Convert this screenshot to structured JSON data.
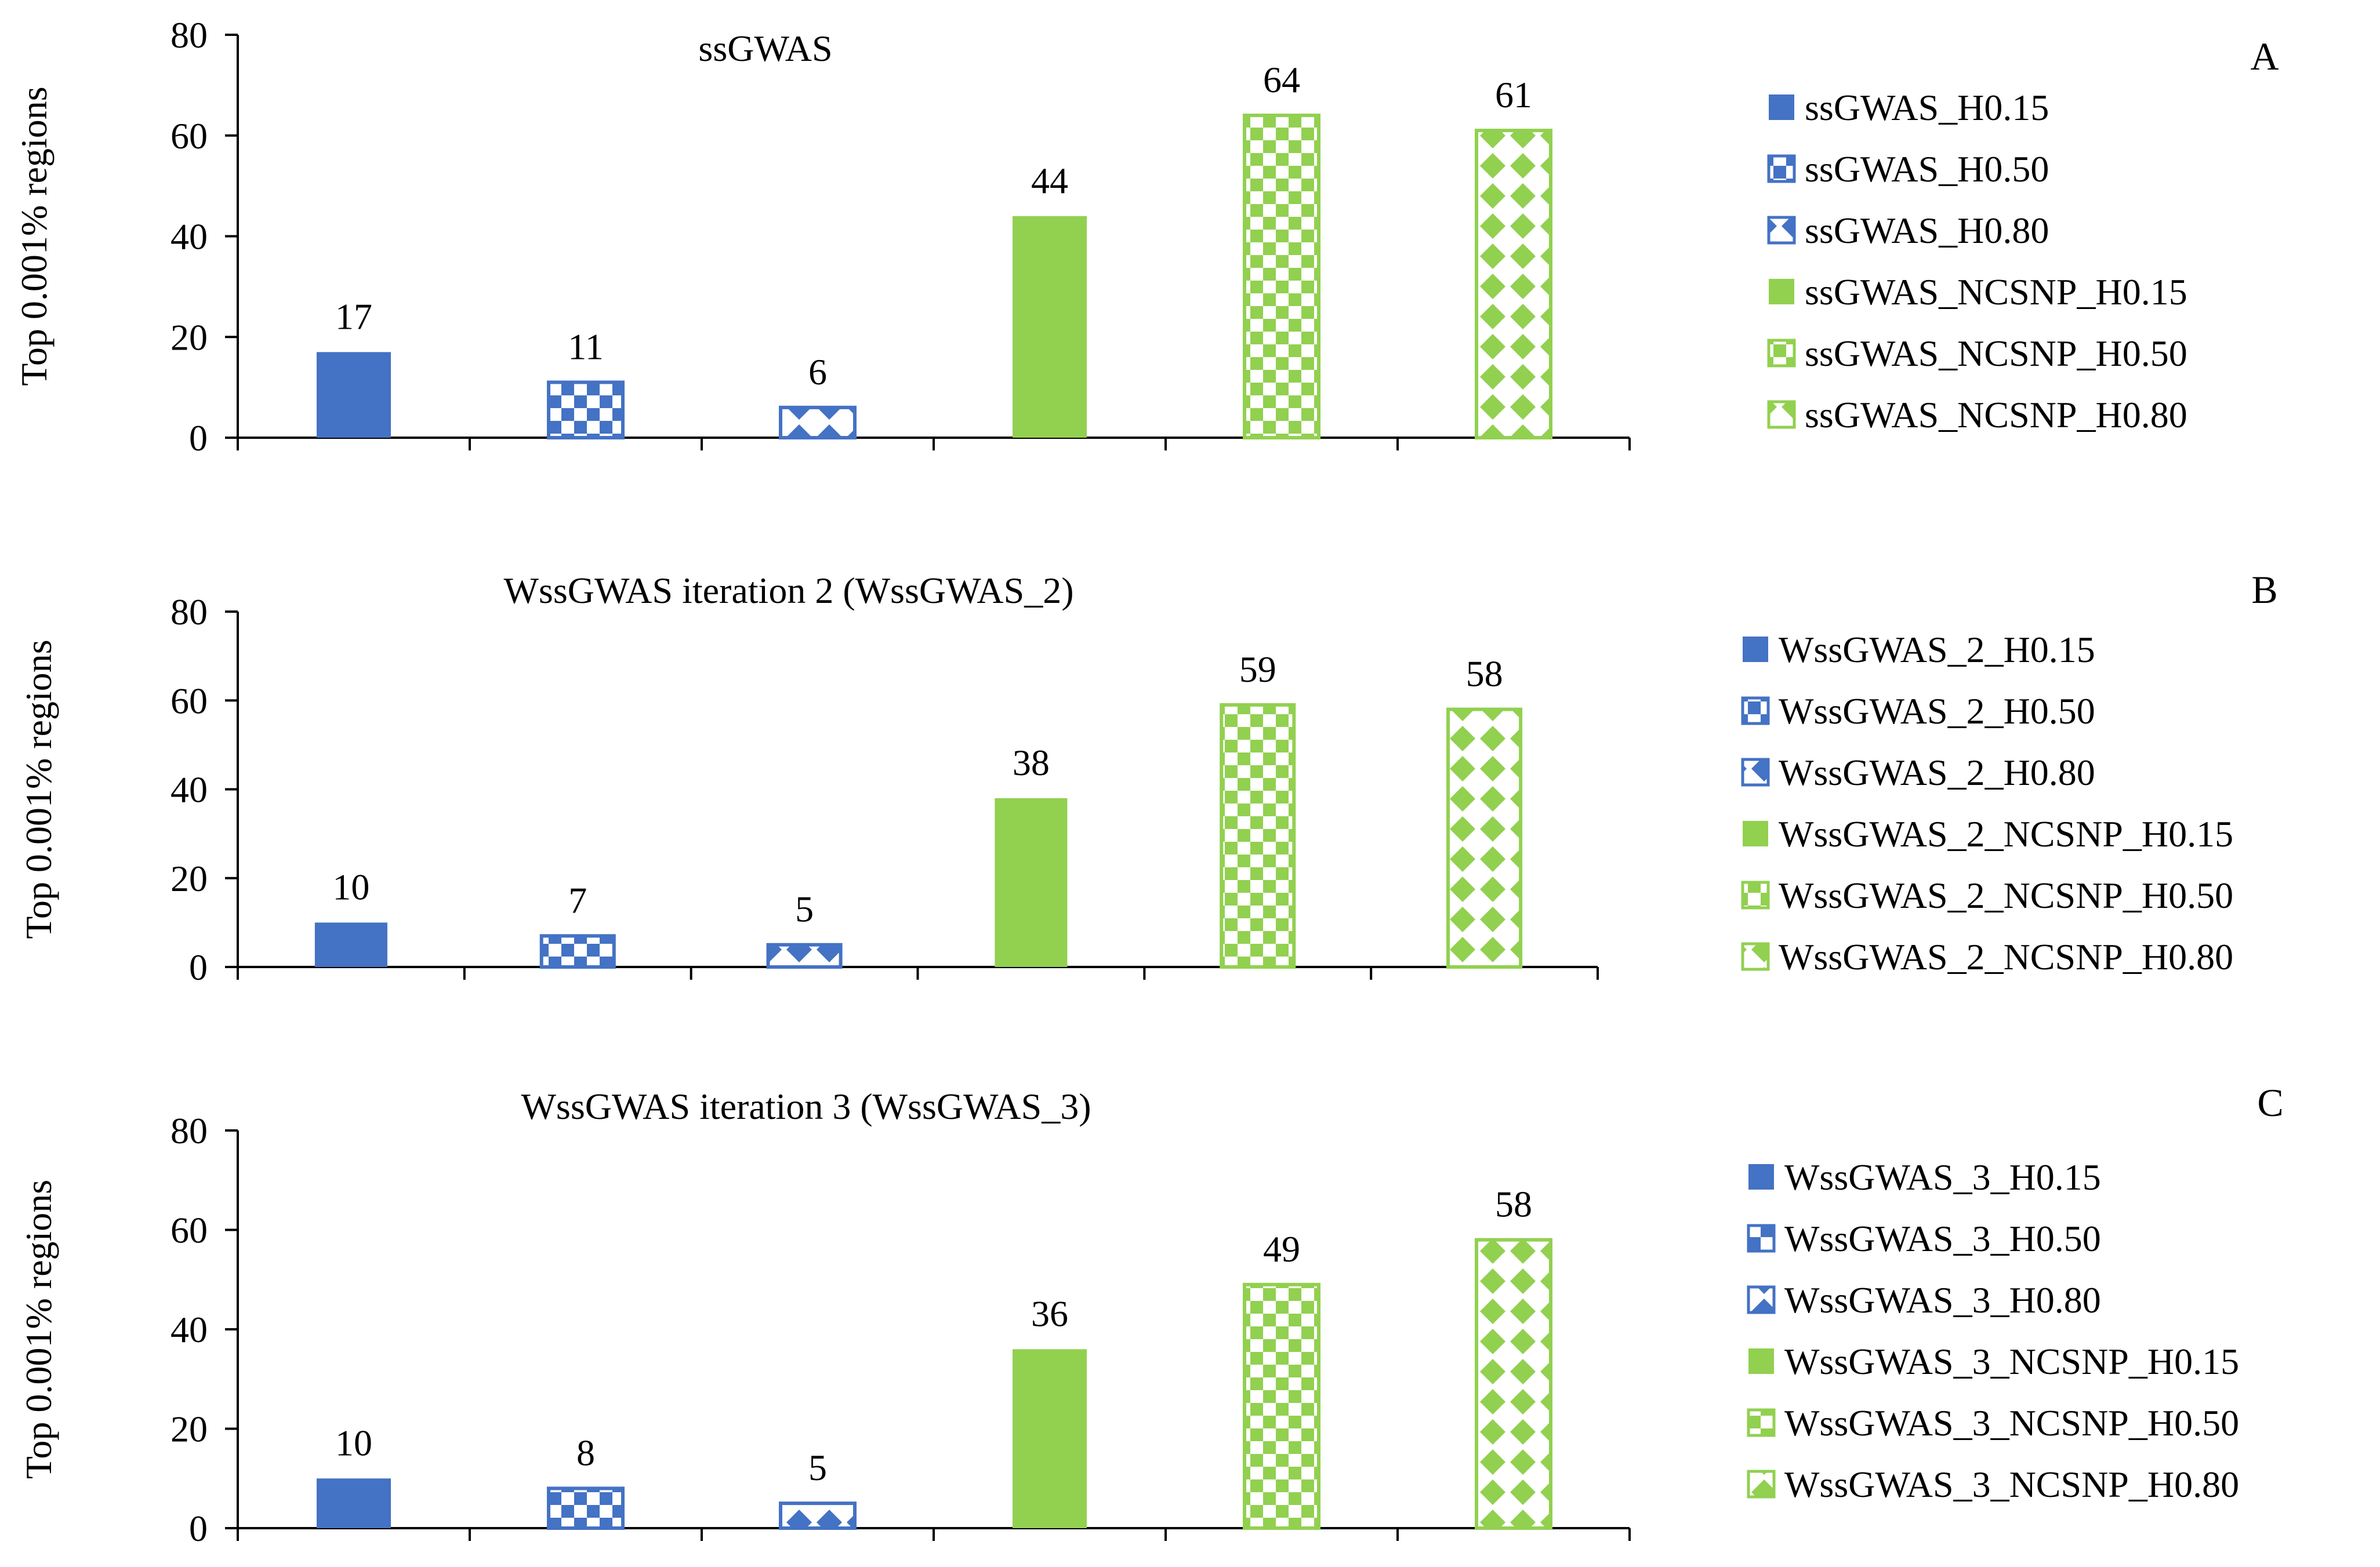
{
  "chart_data": [
    {
      "panel_letter": "A",
      "type": "bar",
      "title": "ssGWAS",
      "ylabel": "Top 0.001% regions",
      "xlabel": "",
      "ylim": [
        0,
        80
      ],
      "yticks": [
        0,
        20,
        40,
        60,
        80
      ],
      "legend_position": "right",
      "series": [
        {
          "name": "ssGWAS_H0.15",
          "value": 17,
          "color": "#4472C4",
          "pattern": "solid"
        },
        {
          "name": "ssGWAS_H0.50",
          "value": 11,
          "color": "#4472C4",
          "pattern": "checker"
        },
        {
          "name": "ssGWAS_H0.80",
          "value": 6,
          "color": "#4472C4",
          "pattern": "diamond"
        },
        {
          "name": "ssGWAS_NCSNP_H0.15",
          "value": 44,
          "color": "#92D050",
          "pattern": "solid"
        },
        {
          "name": "ssGWAS_NCSNP_H0.50",
          "value": 64,
          "color": "#92D050",
          "pattern": "checker"
        },
        {
          "name": "ssGWAS_NCSNP_H0.80",
          "value": 61,
          "color": "#92D050",
          "pattern": "diamond"
        }
      ]
    },
    {
      "panel_letter": "B",
      "type": "bar",
      "title": "WssGWAS iteration 2 (WssGWAS_2)",
      "ylabel": "Top 0.001% regions",
      "xlabel": "",
      "ylim": [
        0,
        80
      ],
      "yticks": [
        0,
        20,
        40,
        60,
        80
      ],
      "legend_position": "right",
      "series": [
        {
          "name": "WssGWAS_2_H0.15",
          "value": 10,
          "color": "#4472C4",
          "pattern": "solid"
        },
        {
          "name": "WssGWAS_2_H0.50",
          "value": 7,
          "color": "#4472C4",
          "pattern": "checker"
        },
        {
          "name": "WssGWAS_2_H0.80",
          "value": 5,
          "color": "#4472C4",
          "pattern": "diamond"
        },
        {
          "name": "WssGWAS_2_NCSNP_H0.15",
          "value": 38,
          "color": "#92D050",
          "pattern": "solid"
        },
        {
          "name": "WssGWAS_2_NCSNP_H0.50",
          "value": 59,
          "color": "#92D050",
          "pattern": "checker"
        },
        {
          "name": "WssGWAS_2_NCSNP_H0.80",
          "value": 58,
          "color": "#92D050",
          "pattern": "diamond"
        }
      ]
    },
    {
      "panel_letter": "C",
      "type": "bar",
      "title": "WssGWAS iteration 3 (WssGWAS_3)",
      "ylabel": "Top 0.001% regions",
      "xlabel": "",
      "ylim": [
        0,
        80
      ],
      "yticks": [
        0,
        20,
        40,
        60,
        80
      ],
      "legend_position": "right",
      "series": [
        {
          "name": "WssGWAS_3_H0.15",
          "value": 10,
          "color": "#4472C4",
          "pattern": "solid"
        },
        {
          "name": "WssGWAS_3_H0.50",
          "value": 8,
          "color": "#4472C4",
          "pattern": "checker"
        },
        {
          "name": "WssGWAS_3_H0.80",
          "value": 5,
          "color": "#4472C4",
          "pattern": "diamond"
        },
        {
          "name": "WssGWAS_3_NCSNP_H0.15",
          "value": 36,
          "color": "#92D050",
          "pattern": "solid"
        },
        {
          "name": "WssGWAS_3_NCSNP_H0.50",
          "value": 49,
          "color": "#92D050",
          "pattern": "checker"
        },
        {
          "name": "WssGWAS_3_NCSNP_H0.80",
          "value": 58,
          "color": "#92D050",
          "pattern": "diamond"
        }
      ]
    }
  ]
}
